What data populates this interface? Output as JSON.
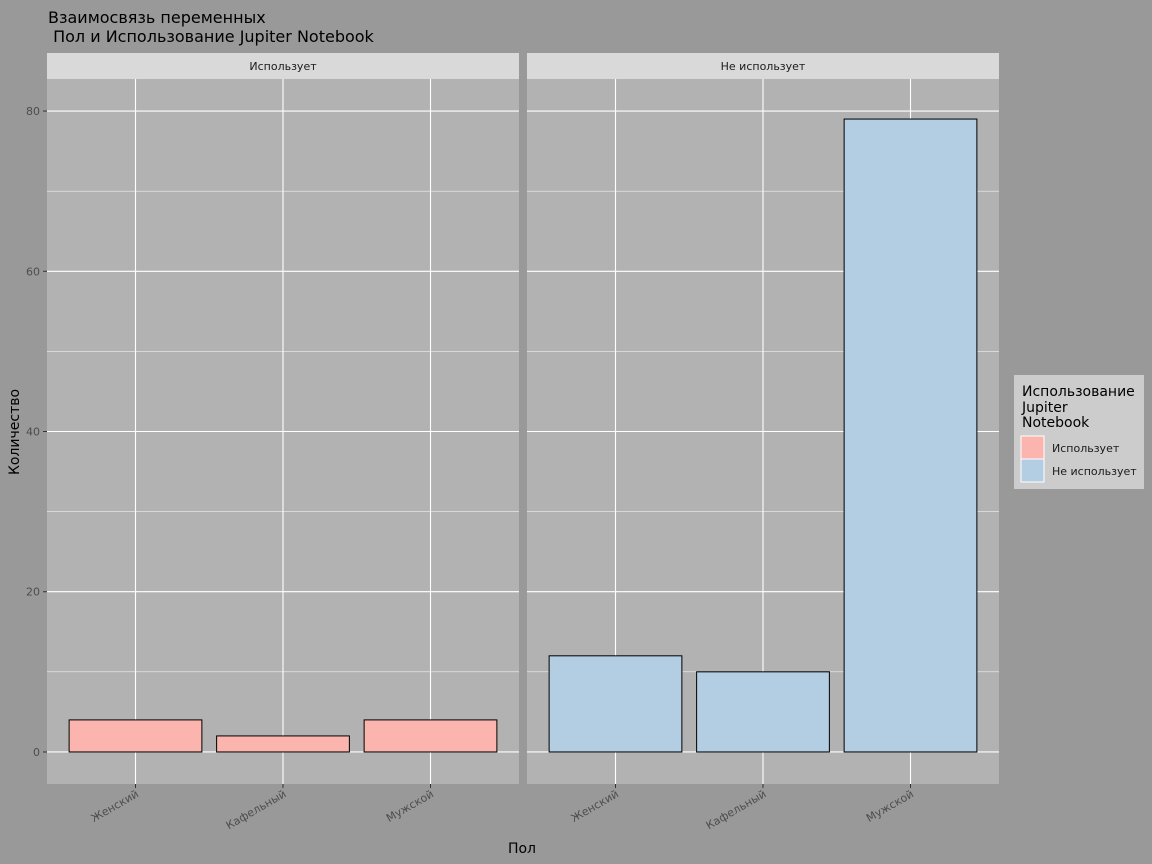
{
  "chart_data": {
    "type": "bar",
    "title_line1": "Взаимосвязь переменных",
    "title_line2": " Пол и Использование Jupiter Notebook",
    "xlabel": "Пол",
    "ylabel": "Количество",
    "ylim": [
      -4,
      84
    ],
    "yticks": [
      0,
      20,
      40,
      60,
      80
    ],
    "categories": [
      "Женский",
      "Кафельный",
      "Мужской"
    ],
    "facets": [
      {
        "name": "Использует",
        "values": [
          4,
          2,
          4
        ],
        "color": "#FBB4AE"
      },
      {
        "name": "Не использует",
        "values": [
          12,
          10,
          79
        ],
        "color": "#B3CDE3"
      }
    ],
    "legend": {
      "title_lines": [
        "Использование",
        "Jupiter",
        "Notebook"
      ],
      "entries": [
        {
          "label": "Использует",
          "color": "#FBB4AE"
        },
        {
          "label": "Не использует",
          "color": "#B3CDE3"
        }
      ]
    },
    "colors": {
      "background": "#999999",
      "panel": "#B2B2B2",
      "strip": "#D9D9D9",
      "grid": "#FFFFFF",
      "legend_bg": "#CCCCCC"
    }
  }
}
